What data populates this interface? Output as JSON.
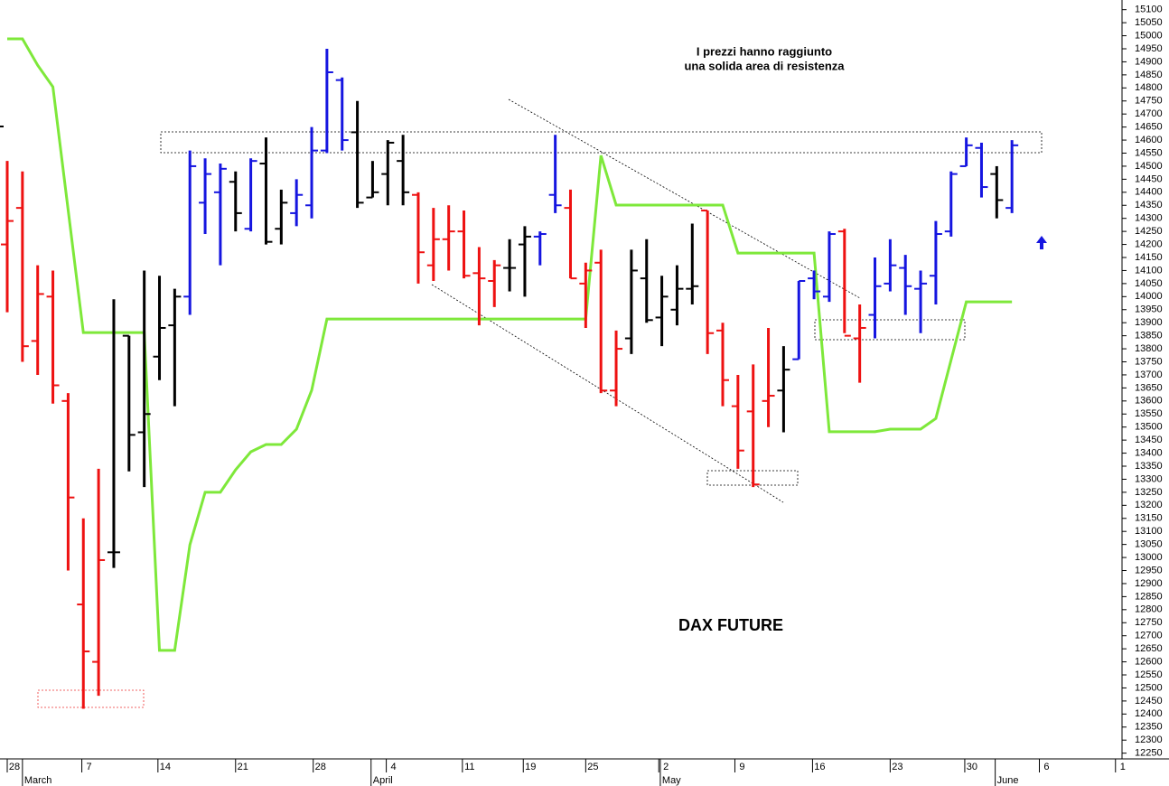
{
  "chart_data": {
    "type": "ohlc",
    "title": "DAX FUTURE",
    "annotation": [
      "I prezzi hanno raggiunto",
      "una solida area di resistenza"
    ],
    "xlim": [
      -0.475,
      73.23
    ],
    "ylim": [
      12228,
      15137
    ],
    "xticks": [
      {
        "value": 0,
        "label": "28"
      },
      {
        "value": 4.9,
        "label": "7"
      },
      {
        "value": 9.9,
        "label": "14"
      },
      {
        "value": 15,
        "label": "21"
      },
      {
        "value": 20.1,
        "label": "28"
      },
      {
        "value": 24.9,
        "label": "4"
      },
      {
        "value": 29.9,
        "label": "11"
      },
      {
        "value": 33.9,
        "label": "19"
      },
      {
        "value": 38,
        "label": "25"
      },
      {
        "value": 42.8,
        "label": "2"
      },
      {
        "value": 47.8,
        "label": "9"
      },
      {
        "value": 52.9,
        "label": "16"
      },
      {
        "value": 58,
        "label": "23"
      },
      {
        "value": 62.9,
        "label": "30"
      },
      {
        "value": 67.8,
        "label": "6"
      },
      {
        "value": 72.8,
        "label": "1"
      }
    ],
    "month_ticks": [
      {
        "value": 1,
        "label": "March"
      },
      {
        "value": 23.9,
        "label": "April"
      },
      {
        "value": 42.9,
        "label": "May"
      },
      {
        "value": 64.9,
        "label": "June"
      }
    ],
    "yticks": [
      12250,
      12300,
      12350,
      12400,
      12450,
      12500,
      12550,
      12600,
      12650,
      12700,
      12750,
      12800,
      12850,
      12900,
      12950,
      13000,
      13050,
      13100,
      13150,
      13200,
      13250,
      13300,
      13350,
      13400,
      13450,
      13500,
      13550,
      13600,
      13650,
      13700,
      13750,
      13800,
      13850,
      13900,
      13950,
      14000,
      14050,
      14100,
      14150,
      14200,
      14250,
      14300,
      14350,
      14400,
      14450,
      14500,
      14550,
      14600,
      14650,
      14700,
      14750,
      14800,
      14850,
      14900,
      14950,
      15000,
      15050,
      15100
    ],
    "x": [
      0,
      1,
      2,
      3,
      4,
      5,
      6,
      7,
      8,
      9,
      10,
      11,
      12,
      13,
      14,
      15,
      16,
      17,
      18,
      19,
      20,
      21,
      22,
      23,
      24,
      25,
      26,
      27,
      28,
      29,
      30,
      31,
      32,
      33,
      34,
      35,
      36,
      37,
      38,
      39,
      40,
      41,
      42,
      43,
      44,
      45,
      46,
      47,
      48,
      49,
      50,
      51,
      52,
      53,
      54,
      55,
      56,
      57,
      58,
      59,
      60,
      61,
      62,
      63,
      64,
      65,
      66
    ],
    "open": [
      14200,
      14340,
      13830,
      14000,
      13600,
      12820,
      12600,
      13020,
      13850,
      13480,
      13770,
      13890,
      14000,
      14360,
      14400,
      14440,
      14260,
      14510,
      14260,
      14320,
      14350,
      14560,
      14830,
      14630,
      14380,
      14470,
      14520,
      14390,
      14120,
      14220,
      14250,
      14090,
      14060,
      14110,
      14200,
      14230,
      14390,
      14340,
      14050,
      14130,
      13640,
      13840,
      14070,
      13920,
      13950,
      14030,
      14330,
      13870,
      13580,
      13560,
      13600,
      13640,
      13760,
      14070,
      14000,
      14250,
      13840,
      13930,
      14050,
      14110,
      14030,
      14080,
      14250,
      14500,
      14570,
      14470,
      14340
    ],
    "high": [
      14520,
      14480,
      14120,
      14100,
      13630,
      13150,
      13340,
      13990,
      13850,
      14100,
      14080,
      14030,
      14560,
      14530,
      14510,
      14480,
      14530,
      14610,
      14410,
      14450,
      14650,
      14950,
      14840,
      14750,
      14520,
      14600,
      14620,
      14400,
      14340,
      14350,
      14330,
      14190,
      14140,
      14220,
      14270,
      14250,
      14620,
      14410,
      14130,
      14180,
      13870,
      14180,
      14220,
      14080,
      14120,
      14280,
      14330,
      13900,
      13700,
      13740,
      13880,
      13810,
      14060,
      14100,
      14250,
      14260,
      13970,
      14150,
      14220,
      14160,
      14100,
      14290,
      14480,
      14610,
      14590,
      14500,
      14600
    ],
    "low": [
      13940,
      13750,
      13700,
      13590,
      12950,
      12420,
      12470,
      12960,
      13330,
      13270,
      13680,
      13580,
      13930,
      14240,
      14120,
      14250,
      14250,
      14200,
      14200,
      14270,
      14300,
      14550,
      14560,
      14340,
      14380,
      14350,
      14350,
      14050,
      14060,
      14100,
      14070,
      13890,
      13960,
      14020,
      14000,
      14120,
      14320,
      14070,
      13880,
      13630,
      13580,
      13780,
      13900,
      13810,
      13890,
      13970,
      13780,
      13580,
      13340,
      13270,
      13500,
      13480,
      13760,
      13990,
      13980,
      13860,
      13670,
      13840,
      14020,
      13930,
      13860,
      13970,
      14230,
      14500,
      14380,
      14300,
      14320
    ],
    "close": [
      14290,
      13810,
      14010,
      13660,
      13230,
      12640,
      12990,
      13020,
      13470,
      13550,
      13880,
      14000,
      14500,
      14470,
      14490,
      14320,
      14520,
      14210,
      14360,
      14390,
      14560,
      14860,
      14600,
      14360,
      14400,
      14590,
      14400,
      14170,
      14220,
      14250,
      14080,
      14070,
      14120,
      14110,
      14230,
      14240,
      14350,
      14070,
      14100,
      13640,
      13800,
      14100,
      13910,
      14000,
      14030,
      14040,
      13860,
      13680,
      13410,
      13280,
      13620,
      13720,
      14060,
      14020,
      14240,
      13850,
      13880,
      14040,
      14120,
      14040,
      14050,
      14240,
      14470,
      14580,
      14420,
      14370,
      14580
    ],
    "colors": [
      "#ee1111",
      "#ee1111",
      "#ee1111",
      "#ee1111",
      "#ee1111",
      "#ee1111",
      "#ee1111",
      "#000000",
      "#000000",
      "#000000",
      "#000000",
      "#000000",
      "#1515e0",
      "#1515e0",
      "#1515e0",
      "#000000",
      "#1515e0",
      "#000000",
      "#000000",
      "#1515e0",
      "#1515e0",
      "#1515e0",
      "#1515e0",
      "#000000",
      "#000000",
      "#000000",
      "#000000",
      "#ee1111",
      "#ee1111",
      "#ee1111",
      "#ee1111",
      "#ee1111",
      "#ee1111",
      "#000000",
      "#000000",
      "#1515e0",
      "#1515e0",
      "#ee1111",
      "#ee1111",
      "#ee1111",
      "#ee1111",
      "#000000",
      "#000000",
      "#000000",
      "#000000",
      "#000000",
      "#ee1111",
      "#ee1111",
      "#ee1111",
      "#ee1111",
      "#ee1111",
      "#000000",
      "#1515e0",
      "#1515e0",
      "#1515e0",
      "#ee1111",
      "#ee1111",
      "#1515e0",
      "#1515e0",
      "#1515e0",
      "#1515e0",
      "#1515e0",
      "#1515e0",
      "#1515e0",
      "#1515e0",
      "#000000",
      "#1515e0"
    ],
    "line": {
      "color": "#7ee83a",
      "values": [
        14988,
        14988,
        14887,
        14804,
        14333,
        13862,
        13862,
        13862,
        13862,
        13862,
        12644,
        12644,
        13049,
        13250,
        13250,
        13336,
        13405,
        13433,
        13433,
        13492,
        13641,
        13914,
        13914,
        13914,
        13914,
        13914,
        13914,
        13914,
        13914,
        13914,
        13914,
        13914,
        13914,
        13914,
        13914,
        13914,
        13914,
        13914,
        13914,
        14541,
        14351,
        14351,
        14351,
        14351,
        14351,
        14351,
        14351,
        14351,
        14167,
        14167,
        14167,
        14167,
        14167,
        14167,
        13482,
        13482,
        13482,
        13482,
        13492,
        13492,
        13492,
        13533,
        13757,
        13980,
        13980,
        13980,
        13980
      ]
    }
  }
}
